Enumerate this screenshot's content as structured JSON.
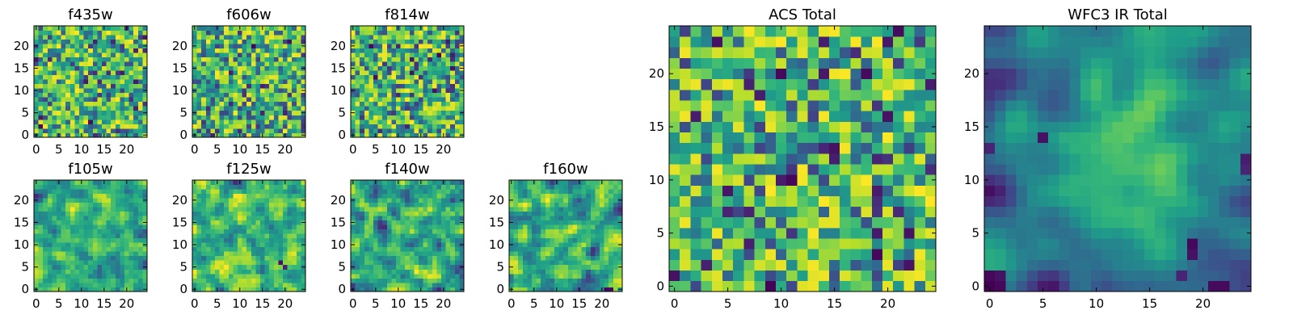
{
  "figure": {
    "description_free": true
  },
  "chart_data": [
    {
      "type": "heatmap",
      "title": "f435w",
      "grid_size": 25,
      "xlim": [
        0,
        24
      ],
      "ylim": [
        0,
        24
      ],
      "xticks": [
        0,
        5,
        10,
        15,
        20
      ],
      "yticks": [
        0,
        5,
        10,
        15,
        20
      ],
      "colormap": "viridis",
      "seed": 101,
      "smooth": 0,
      "features": []
    },
    {
      "type": "heatmap",
      "title": "f606w",
      "grid_size": 25,
      "xlim": [
        0,
        24
      ],
      "ylim": [
        0,
        24
      ],
      "xticks": [
        0,
        5,
        10,
        15,
        20
      ],
      "yticks": [
        0,
        5,
        10,
        15,
        20
      ],
      "colormap": "viridis",
      "seed": 202,
      "smooth": 0,
      "features": []
    },
    {
      "type": "heatmap",
      "title": "f814w",
      "grid_size": 25,
      "xlim": [
        0,
        24
      ],
      "ylim": [
        0,
        24
      ],
      "xticks": [
        0,
        5,
        10,
        15,
        20
      ],
      "yticks": [
        0,
        5,
        10,
        15,
        20
      ],
      "colormap": "viridis",
      "seed": 303,
      "smooth": 0,
      "features": []
    },
    {
      "type": "heatmap",
      "title": "f105w",
      "grid_size": 25,
      "xlim": [
        0,
        24
      ],
      "ylim": [
        0,
        24
      ],
      "xticks": [
        0,
        5,
        10,
        15,
        20
      ],
      "yticks": [
        0,
        5,
        10,
        15,
        20
      ],
      "colormap": "viridis",
      "seed": 404,
      "smooth": 1,
      "features": []
    },
    {
      "type": "heatmap",
      "title": "f125w",
      "grid_size": 25,
      "xlim": [
        0,
        24
      ],
      "ylim": [
        0,
        24
      ],
      "xticks": [
        0,
        5,
        10,
        15,
        20
      ],
      "yticks": [
        0,
        5,
        10,
        15,
        20
      ],
      "colormap": "viridis",
      "seed": 505,
      "smooth": 1,
      "features": [
        {
          "x": 19,
          "y": 6,
          "value": 0.05
        },
        {
          "x": 20,
          "y": 5,
          "value": 0.1
        }
      ]
    },
    {
      "type": "heatmap",
      "title": "f140w",
      "grid_size": 25,
      "xlim": [
        0,
        24
      ],
      "ylim": [
        0,
        24
      ],
      "xticks": [
        0,
        5,
        10,
        15,
        20
      ],
      "yticks": [
        0,
        5,
        10,
        15,
        20
      ],
      "colormap": "viridis",
      "seed": 606,
      "smooth": 1,
      "features": []
    },
    {
      "type": "heatmap",
      "title": "f160w",
      "grid_size": 25,
      "xlim": [
        0,
        24
      ],
      "ylim": [
        0,
        24
      ],
      "xticks": [
        0,
        5,
        10,
        15,
        20
      ],
      "yticks": [
        0,
        5,
        10,
        15,
        20
      ],
      "colormap": "viridis",
      "seed": 707,
      "smooth": 1,
      "features": [
        {
          "x": 21,
          "y": 0,
          "value": 0.02
        },
        {
          "x": 22,
          "y": 0,
          "value": 0.04
        }
      ]
    },
    {
      "type": "heatmap",
      "title": "ACS Total",
      "grid_size": 25,
      "xlim": [
        0,
        24
      ],
      "ylim": [
        0,
        24
      ],
      "xticks": [
        0,
        5,
        10,
        15,
        20
      ],
      "yticks": [
        0,
        5,
        10,
        15,
        20
      ],
      "colormap": "viridis",
      "seed": 808,
      "smooth": 0,
      "features": [
        {
          "x": 4,
          "y": 23,
          "value": 0.05
        },
        {
          "x": 14,
          "y": 23,
          "value": 0.08
        },
        {
          "x": 21,
          "y": 24,
          "value": 0.03
        },
        {
          "x": 10,
          "y": 20,
          "value": 0.02
        },
        {
          "x": 8,
          "y": 18,
          "value": 0.08
        },
        {
          "x": 20,
          "y": 16,
          "value": 0.05
        },
        {
          "x": 15,
          "y": 13,
          "value": 0.05
        },
        {
          "x": 15,
          "y": 12,
          "value": 0.08
        },
        {
          "x": 19,
          "y": 12,
          "value": 0.1
        },
        {
          "x": 11,
          "y": 10,
          "value": 0.02
        },
        {
          "x": 5,
          "y": 7,
          "value": 0.1
        },
        {
          "x": 22,
          "y": 5,
          "value": 0.05
        },
        {
          "x": 19,
          "y": 3,
          "value": 0.02
        },
        {
          "x": 0,
          "y": 1,
          "value": 0.05
        }
      ]
    },
    {
      "type": "heatmap",
      "title": "WFC3 IR Total",
      "grid_size": 25,
      "xlim": [
        0,
        24
      ],
      "ylim": [
        0,
        24
      ],
      "xticks": [
        0,
        5,
        10,
        15,
        20
      ],
      "yticks": [
        0,
        5,
        10,
        15,
        20
      ],
      "colormap": "viridis",
      "seed": 909,
      "smooth": 2,
      "features": [
        {
          "x": 0,
          "y": 0,
          "value": 0.0
        },
        {
          "x": 1,
          "y": 0,
          "value": 0.02
        },
        {
          "x": 0,
          "y": 1,
          "value": 0.02
        },
        {
          "x": 1,
          "y": 1,
          "value": 0.05
        },
        {
          "x": 19,
          "y": 4,
          "value": 0.02
        },
        {
          "x": 19,
          "y": 3,
          "value": 0.05
        },
        {
          "x": 18,
          "y": 1,
          "value": 0.1
        },
        {
          "x": 21,
          "y": 0,
          "value": 0.03
        },
        {
          "x": 22,
          "y": 0,
          "value": 0.03
        },
        {
          "x": 5,
          "y": 14,
          "value": 0.05
        },
        {
          "x": 0,
          "y": 13,
          "value": 0.1
        },
        {
          "x": 24,
          "y": 12,
          "value": 0.08
        },
        {
          "x": 24,
          "y": 11,
          "value": 0.1
        }
      ]
    }
  ]
}
